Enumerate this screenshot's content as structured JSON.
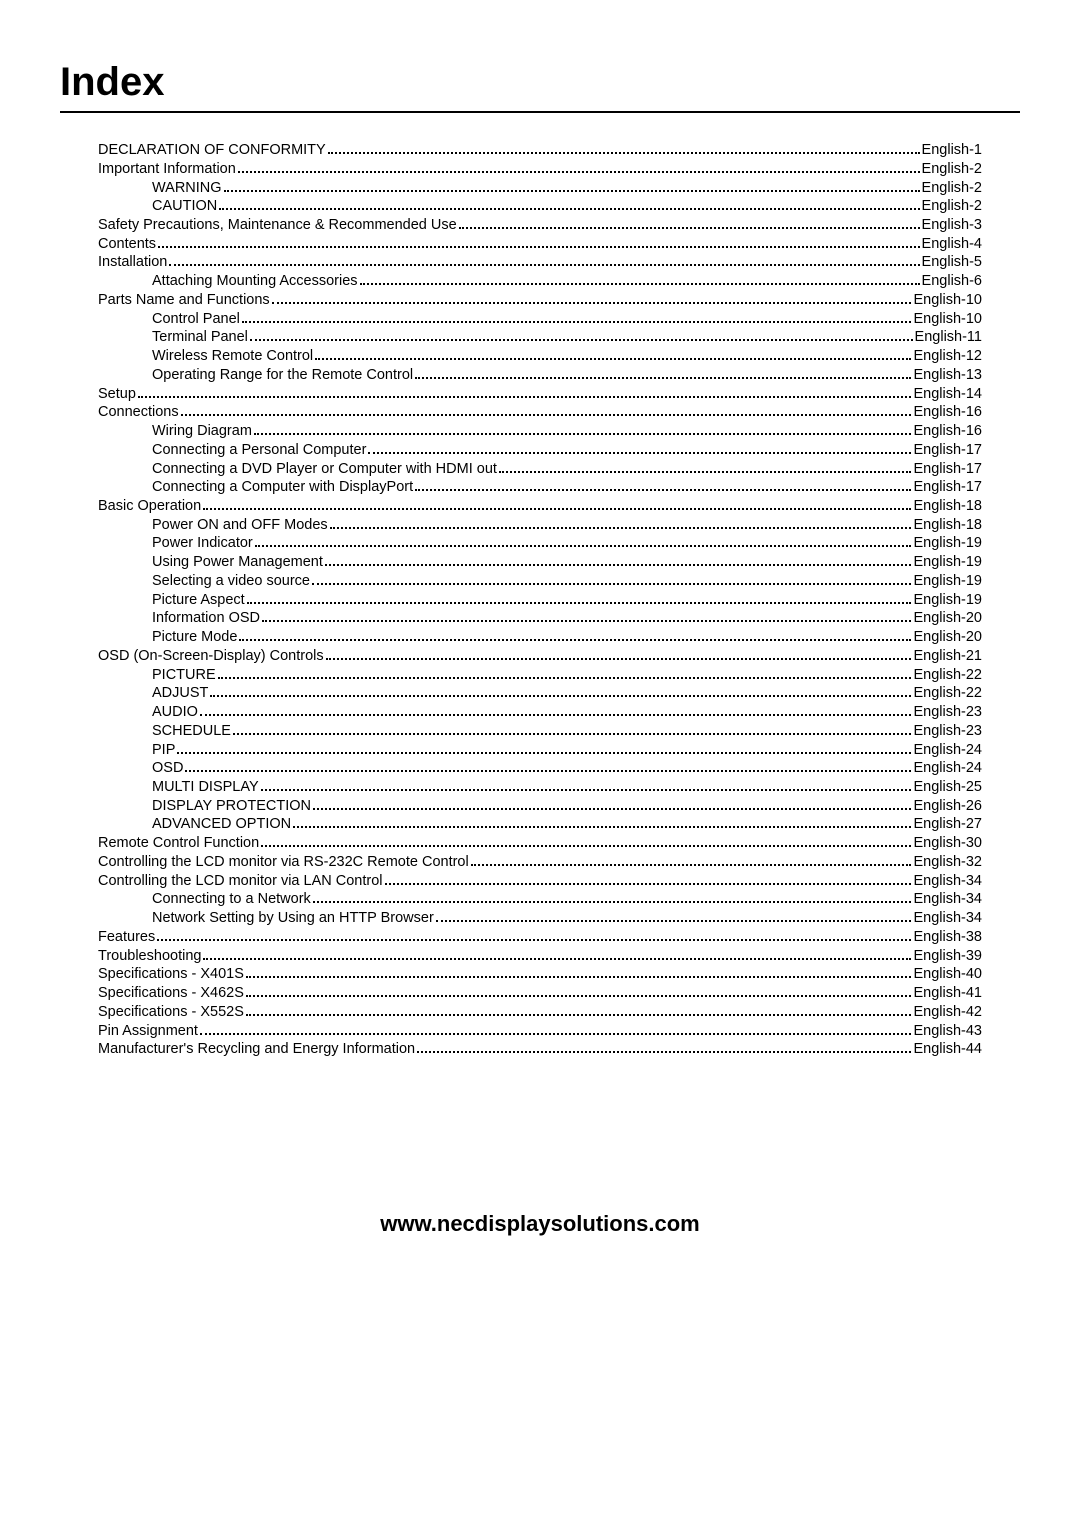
{
  "title": "Index",
  "footer_url": "www.necdisplaysolutions.com",
  "toc": [
    {
      "level": 1,
      "label": "DECLARATION OF CONFORMITY",
      "page": "English-1"
    },
    {
      "level": 1,
      "label": "Important Information",
      "page": "English-2"
    },
    {
      "level": 2,
      "label": "WARNING",
      "page": "English-2"
    },
    {
      "level": 2,
      "label": "CAUTION",
      "page": "English-2"
    },
    {
      "level": 1,
      "label": "Safety Precautions, Maintenance & Recommended Use",
      "page": "English-3"
    },
    {
      "level": 1,
      "label": "Contents",
      "page": "English-4"
    },
    {
      "level": 1,
      "label": "Installation",
      "page": "English-5"
    },
    {
      "level": 2,
      "label": "Attaching Mounting Accessories",
      "page": "English-6"
    },
    {
      "level": 1,
      "label": "Parts Name and Functions",
      "page": "English-10"
    },
    {
      "level": 2,
      "label": "Control Panel",
      "page": "English-10"
    },
    {
      "level": 2,
      "label": "Terminal Panel",
      "page": "English-11"
    },
    {
      "level": 2,
      "label": "Wireless Remote Control",
      "page": "English-12"
    },
    {
      "level": 2,
      "label": "Operating Range for the Remote Control",
      "page": "English-13"
    },
    {
      "level": 1,
      "label": "Setup",
      "page": "English-14"
    },
    {
      "level": 1,
      "label": "Connections",
      "page": "English-16"
    },
    {
      "level": 2,
      "label": "Wiring Diagram",
      "page": "English-16"
    },
    {
      "level": 2,
      "label": "Connecting a Personal Computer",
      "page": "English-17"
    },
    {
      "level": 2,
      "label": "Connecting a DVD Player or Computer with HDMI out",
      "page": "English-17"
    },
    {
      "level": 2,
      "label": "Connecting a Computer with DisplayPort",
      "page": "English-17"
    },
    {
      "level": 1,
      "label": "Basic Operation",
      "page": "English-18"
    },
    {
      "level": 2,
      "label": "Power ON and OFF Modes",
      "page": "English-18"
    },
    {
      "level": 2,
      "label": "Power Indicator",
      "page": "English-19"
    },
    {
      "level": 2,
      "label": "Using Power Management",
      "page": "English-19"
    },
    {
      "level": 2,
      "label": "Selecting a video source",
      "page": "English-19"
    },
    {
      "level": 2,
      "label": "Picture Aspect",
      "page": "English-19"
    },
    {
      "level": 2,
      "label": "Information OSD",
      "page": "English-20"
    },
    {
      "level": 2,
      "label": "Picture Mode",
      "page": "English-20"
    },
    {
      "level": 1,
      "label": "OSD (On-Screen-Display) Controls",
      "page": "English-21"
    },
    {
      "level": 2,
      "label": "PICTURE",
      "page": "English-22"
    },
    {
      "level": 2,
      "label": "ADJUST",
      "page": "English-22"
    },
    {
      "level": 2,
      "label": "AUDIO",
      "page": "English-23"
    },
    {
      "level": 2,
      "label": "SCHEDULE",
      "page": "English-23"
    },
    {
      "level": 2,
      "label": "PIP",
      "page": "English-24"
    },
    {
      "level": 2,
      "label": "OSD",
      "page": "English-24"
    },
    {
      "level": 2,
      "label": "MULTI DISPLAY",
      "page": "English-25"
    },
    {
      "level": 2,
      "label": "DISPLAY PROTECTION",
      "page": "English-26"
    },
    {
      "level": 2,
      "label": "ADVANCED OPTION",
      "page": "English-27"
    },
    {
      "level": 1,
      "label": "Remote Control Function",
      "page": "English-30"
    },
    {
      "level": 1,
      "label": "Controlling the LCD monitor via RS-232C Remote Control",
      "page": "English-32"
    },
    {
      "level": 1,
      "label": "Controlling the LCD monitor via LAN Control",
      "page": "English-34"
    },
    {
      "level": 2,
      "label": "Connecting to a Network",
      "page": "English-34"
    },
    {
      "level": 2,
      "label": "Network Setting by Using an HTTP Browser",
      "page": "English-34"
    },
    {
      "level": 1,
      "label": "Features",
      "page": "English-38"
    },
    {
      "level": 1,
      "label": "Troubleshooting",
      "page": "English-39"
    },
    {
      "level": 1,
      "label": "Specifications - X401S",
      "page": "English-40"
    },
    {
      "level": 1,
      "label": "Specifications - X462S",
      "page": "English-41"
    },
    {
      "level": 1,
      "label": "Specifications - X552S",
      "page": "English-42"
    },
    {
      "level": 1,
      "label": "Pin Assignment",
      "page": "English-43"
    },
    {
      "level": 1,
      "label": "Manufacturer's Recycling and Energy Information",
      "page": "English-44"
    }
  ]
}
